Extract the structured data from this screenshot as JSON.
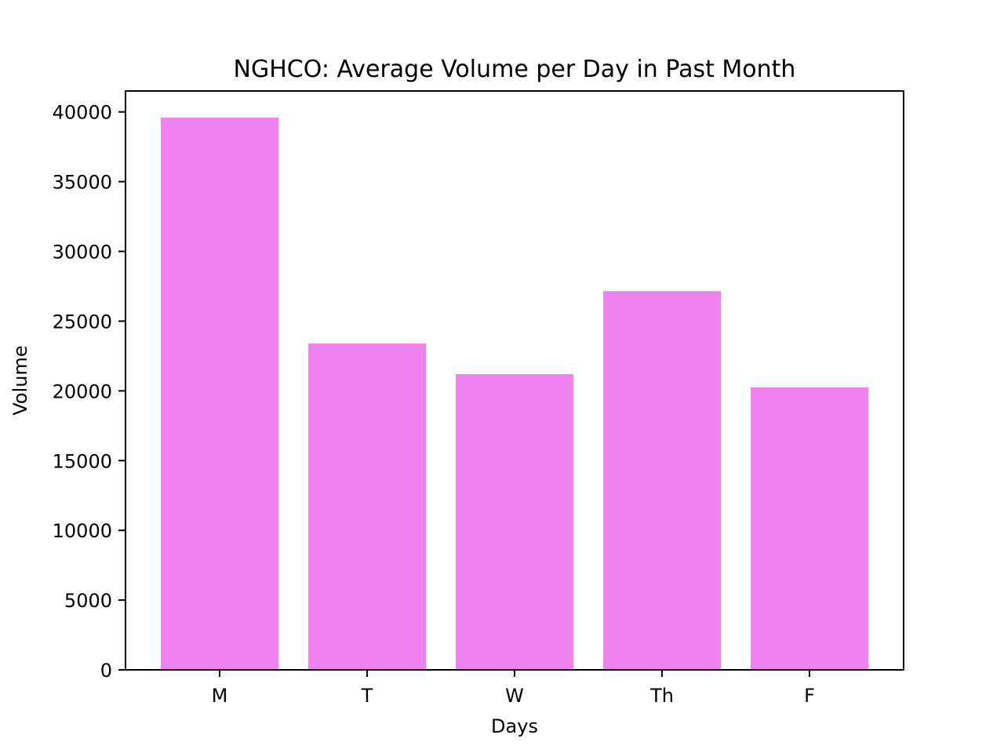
{
  "chart_data": {
    "type": "bar",
    "title": "NGHCO: Average Volume per Day in Past Month",
    "xlabel": "Days",
    "ylabel": "Volume",
    "categories": [
      "M",
      "T",
      "W",
      "Th",
      "F"
    ],
    "values": [
      39600,
      23400,
      21200,
      27150,
      20250
    ],
    "ylim": [
      0,
      41500
    ],
    "yticks": [
      0,
      5000,
      10000,
      15000,
      20000,
      25000,
      30000,
      35000,
      40000
    ],
    "bar_color": "#ee82ee",
    "grid": false,
    "legend": "none"
  }
}
